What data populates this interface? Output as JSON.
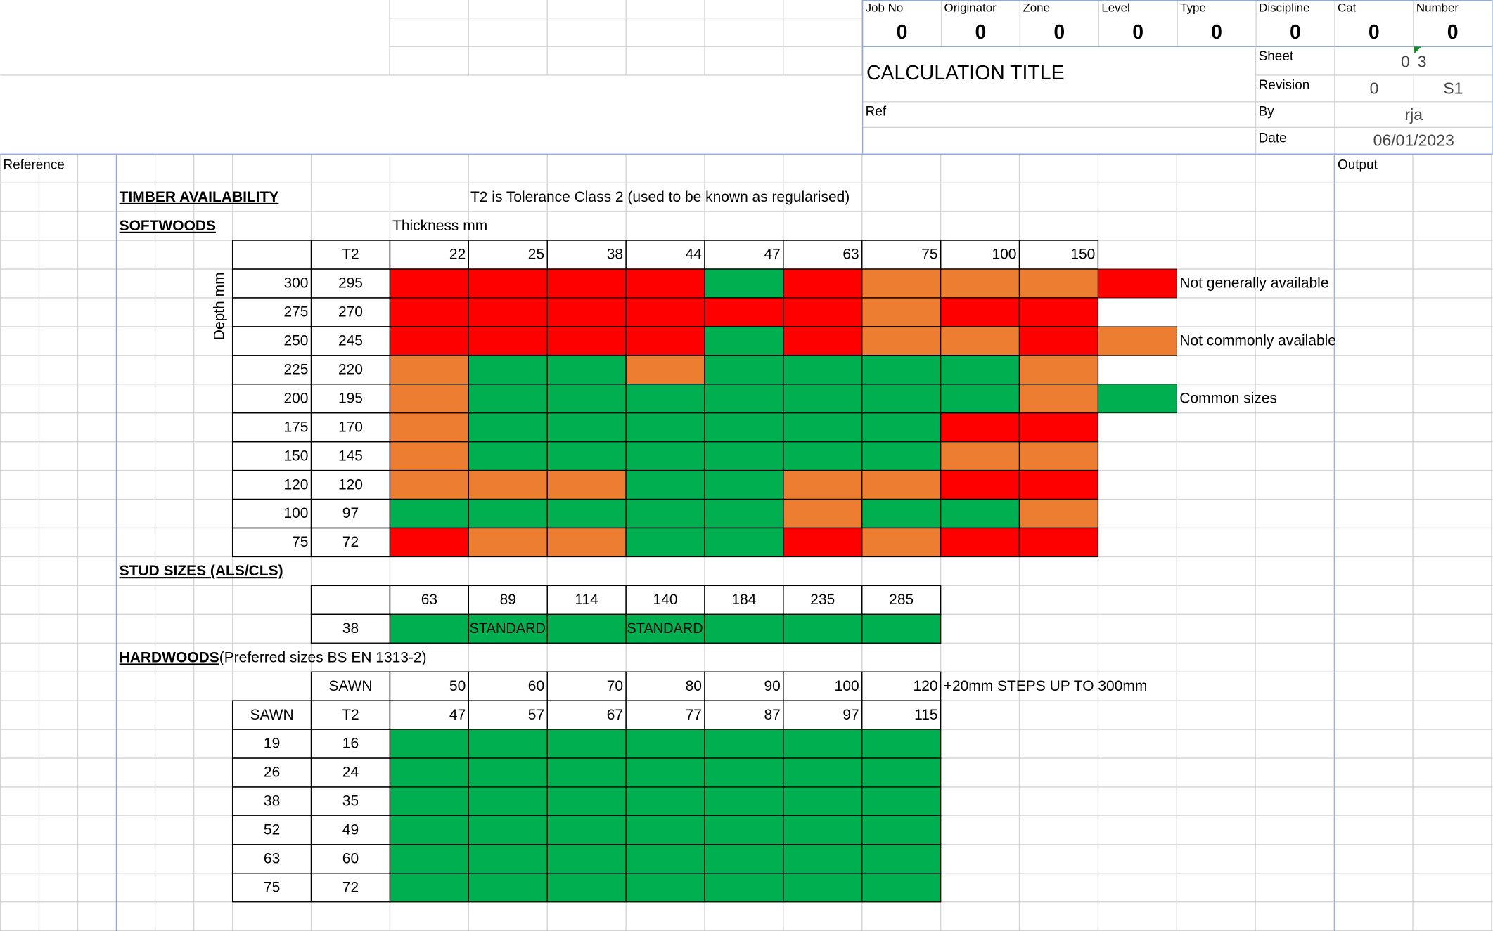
{
  "header": {
    "fields": [
      {
        "label": "Job No",
        "value": "0"
      },
      {
        "label": "Originator",
        "value": "0"
      },
      {
        "label": "Zone",
        "value": "0"
      },
      {
        "label": "Level",
        "value": "0"
      },
      {
        "label": "Type",
        "value": "0"
      },
      {
        "label": "Discipline",
        "value": "0"
      },
      {
        "label": "Cat",
        "value": "0"
      },
      {
        "label": "Number",
        "value": "0"
      }
    ],
    "title": "CALCULATION TITLE",
    "sheet": {
      "label": "Sheet",
      "value": "0",
      "total": "3"
    },
    "revision": {
      "label": "Revision",
      "value": "0",
      "status": "S1"
    },
    "ref": {
      "label": "Ref"
    },
    "by": {
      "label": "By",
      "value": "rja"
    },
    "date": {
      "label": "Date",
      "value": "06/01/2023"
    }
  },
  "margins": {
    "left": "Reference",
    "right": "Output"
  },
  "timber": {
    "title": "TIMBER AVAILABILITY",
    "note": "T2 is Tolerance Class 2 (used to be known as regularised)"
  },
  "softwoods": {
    "title": "SOFTWOODS",
    "thickness_label": "Thickness mm",
    "depth_label": "Depth mm",
    "t2_label": "T2",
    "thicknesses": [
      22,
      25,
      38,
      44,
      47,
      63,
      75,
      100,
      150
    ],
    "rows": [
      {
        "depth": 300,
        "t2": 295,
        "cells": [
          "#ff0000",
          "#ff0000",
          "#ff0000",
          "#ff0000",
          "#00b050",
          "#ff0000",
          "#ed7d31",
          "#ed7d31",
          "#ed7d31"
        ]
      },
      {
        "depth": 275,
        "t2": 270,
        "cells": [
          "#ff0000",
          "#ff0000",
          "#ff0000",
          "#ff0000",
          "#ff0000",
          "#ff0000",
          "#ed7d31",
          "#ff0000",
          "#ff0000"
        ]
      },
      {
        "depth": 250,
        "t2": 245,
        "cells": [
          "#ff0000",
          "#ff0000",
          "#ff0000",
          "#ff0000",
          "#00b050",
          "#ff0000",
          "#ed7d31",
          "#ed7d31",
          "#ff0000"
        ]
      },
      {
        "depth": 225,
        "t2": 220,
        "cells": [
          "#ed7d31",
          "#00b050",
          "#00b050",
          "#ed7d31",
          "#00b050",
          "#00b050",
          "#00b050",
          "#00b050",
          "#ed7d31"
        ]
      },
      {
        "depth": 200,
        "t2": 195,
        "cells": [
          "#ed7d31",
          "#00b050",
          "#00b050",
          "#00b050",
          "#00b050",
          "#00b050",
          "#00b050",
          "#00b050",
          "#ed7d31"
        ]
      },
      {
        "depth": 175,
        "t2": 170,
        "cells": [
          "#ed7d31",
          "#00b050",
          "#00b050",
          "#00b050",
          "#00b050",
          "#00b050",
          "#00b050",
          "#ff0000",
          "#ff0000"
        ]
      },
      {
        "depth": 150,
        "t2": 145,
        "cells": [
          "#ed7d31",
          "#00b050",
          "#00b050",
          "#00b050",
          "#00b050",
          "#00b050",
          "#00b050",
          "#ed7d31",
          "#ed7d31"
        ]
      },
      {
        "depth": 120,
        "t2": 120,
        "cells": [
          "#ed7d31",
          "#ed7d31",
          "#ed7d31",
          "#00b050",
          "#00b050",
          "#ed7d31",
          "#ed7d31",
          "#ff0000",
          "#ff0000"
        ]
      },
      {
        "depth": 100,
        "t2": 97,
        "cells": [
          "#00b050",
          "#00b050",
          "#00b050",
          "#00b050",
          "#00b050",
          "#ed7d31",
          "#00b050",
          "#00b050",
          "#ed7d31"
        ]
      },
      {
        "depth": 75,
        "t2": 72,
        "cells": [
          "#ff0000",
          "#ed7d31",
          "#ed7d31",
          "#00b050",
          "#00b050",
          "#ff0000",
          "#ed7d31",
          "#ff0000",
          "#ff0000"
        ]
      }
    ],
    "legend": [
      {
        "color": "#ff0000",
        "label": "Not generally available"
      },
      {
        "color": "#ed7d31",
        "label": "Not commonly available"
      },
      {
        "color": "#00b050",
        "label": "Common sizes"
      }
    ]
  },
  "studs": {
    "title": "STUD SIZES (ALS/CLS)",
    "widths": [
      63,
      89,
      114,
      140,
      184,
      235,
      285
    ],
    "thickness": 38,
    "color": "#00b050",
    "labels": [
      null,
      "STANDARD",
      null,
      "STANDARD",
      null,
      null,
      null
    ]
  },
  "hardwoods": {
    "title": "HARDWOODS",
    "subtitle": "(Preferred sizes BS EN 1313-2)",
    "sawn_label": "SAWN",
    "t2_label": "T2",
    "widths": [
      50,
      60,
      70,
      80,
      90,
      100,
      120
    ],
    "widths_t2": [
      47,
      57,
      67,
      77,
      87,
      97,
      115
    ],
    "note": "+20mm STEPS UP TO 300mm",
    "color": "#00b050",
    "rows": [
      {
        "sawn": 19,
        "t2": 16
      },
      {
        "sawn": 26,
        "t2": 24
      },
      {
        "sawn": 38,
        "t2": 35
      },
      {
        "sawn": 52,
        "t2": 49
      },
      {
        "sawn": 63,
        "t2": 60
      },
      {
        "sawn": 75,
        "t2": 72
      }
    ]
  }
}
